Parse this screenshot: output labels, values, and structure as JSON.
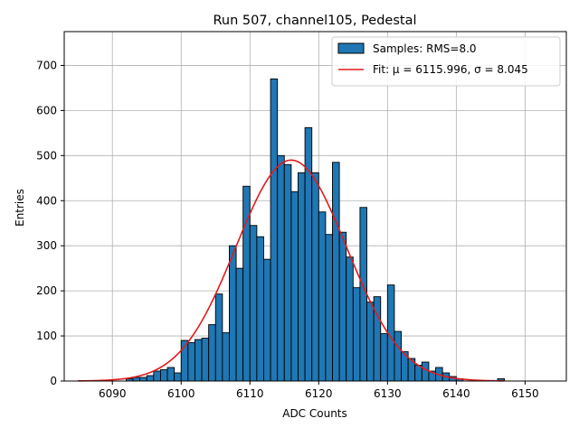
{
  "chart_data": {
    "type": "bar",
    "title": "Run 507, channel105, Pedestal",
    "xlabel": "ADC Counts",
    "ylabel": "Entries",
    "xlim": [
      6083,
      6156
    ],
    "ylim": [
      0,
      775
    ],
    "xticks": [
      6090,
      6100,
      6110,
      6120,
      6130,
      6140,
      6150
    ],
    "yticks": [
      0,
      100,
      200,
      300,
      400,
      500,
      600,
      700
    ],
    "grid": true,
    "legend_position": "top-right",
    "histogram": {
      "name": "Samples: RMS=8.0",
      "color": "#1f77b4",
      "bin_width": 1,
      "bin_left_edges": [
        6092,
        6093,
        6094,
        6095,
        6096,
        6097,
        6098,
        6099,
        6100,
        6101,
        6102,
        6103,
        6104,
        6105,
        6106,
        6107,
        6108,
        6109,
        6110,
        6111,
        6112,
        6113,
        6114,
        6115,
        6116,
        6117,
        6118,
        6119,
        6120,
        6121,
        6122,
        6123,
        6124,
        6125,
        6126,
        6127,
        6128,
        6129,
        6130,
        6131,
        6132,
        6133,
        6134,
        6135,
        6136,
        6137,
        6138,
        6139,
        6140,
        6146
      ],
      "values": [
        5,
        8,
        8,
        12,
        22,
        25,
        30,
        18,
        90,
        85,
        92,
        95,
        125,
        193,
        107,
        300,
        250,
        432,
        345,
        320,
        270,
        670,
        500,
        480,
        420,
        462,
        562,
        462,
        375,
        325,
        485,
        330,
        275,
        207,
        385,
        175,
        187,
        105,
        213,
        110,
        65,
        50,
        35,
        42,
        22,
        30,
        18,
        10,
        5,
        5
      ]
    },
    "fit": {
      "name": "Fit: μ = 6115.996, σ = 8.045",
      "color": "#e31a1c",
      "mu": 6115.996,
      "sigma": 8.045,
      "amplitude": 490,
      "x_range": [
        6085,
        6147
      ]
    }
  }
}
